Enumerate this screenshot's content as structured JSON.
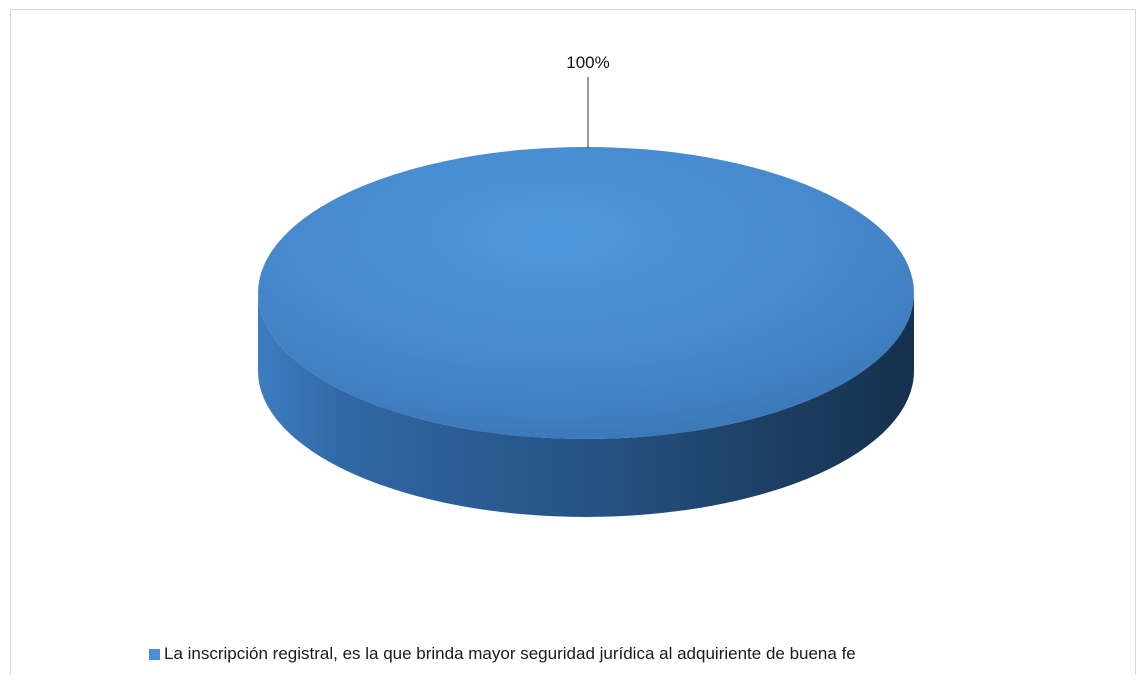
{
  "chart_data": {
    "type": "pie",
    "style": "3d",
    "title": "",
    "slices": [
      {
        "label": "La inscripción registral, es la que brinda mayor seguridad jurídica al adquiriente de buena fe",
        "value": 100,
        "data_label": "100%",
        "color": "#4a8fd4"
      }
    ],
    "legend_position": "bottom"
  },
  "colors": {
    "top_face": "#4a8fd4",
    "side_dark": "#1f3f63",
    "side_mid": "#3a78b8"
  }
}
